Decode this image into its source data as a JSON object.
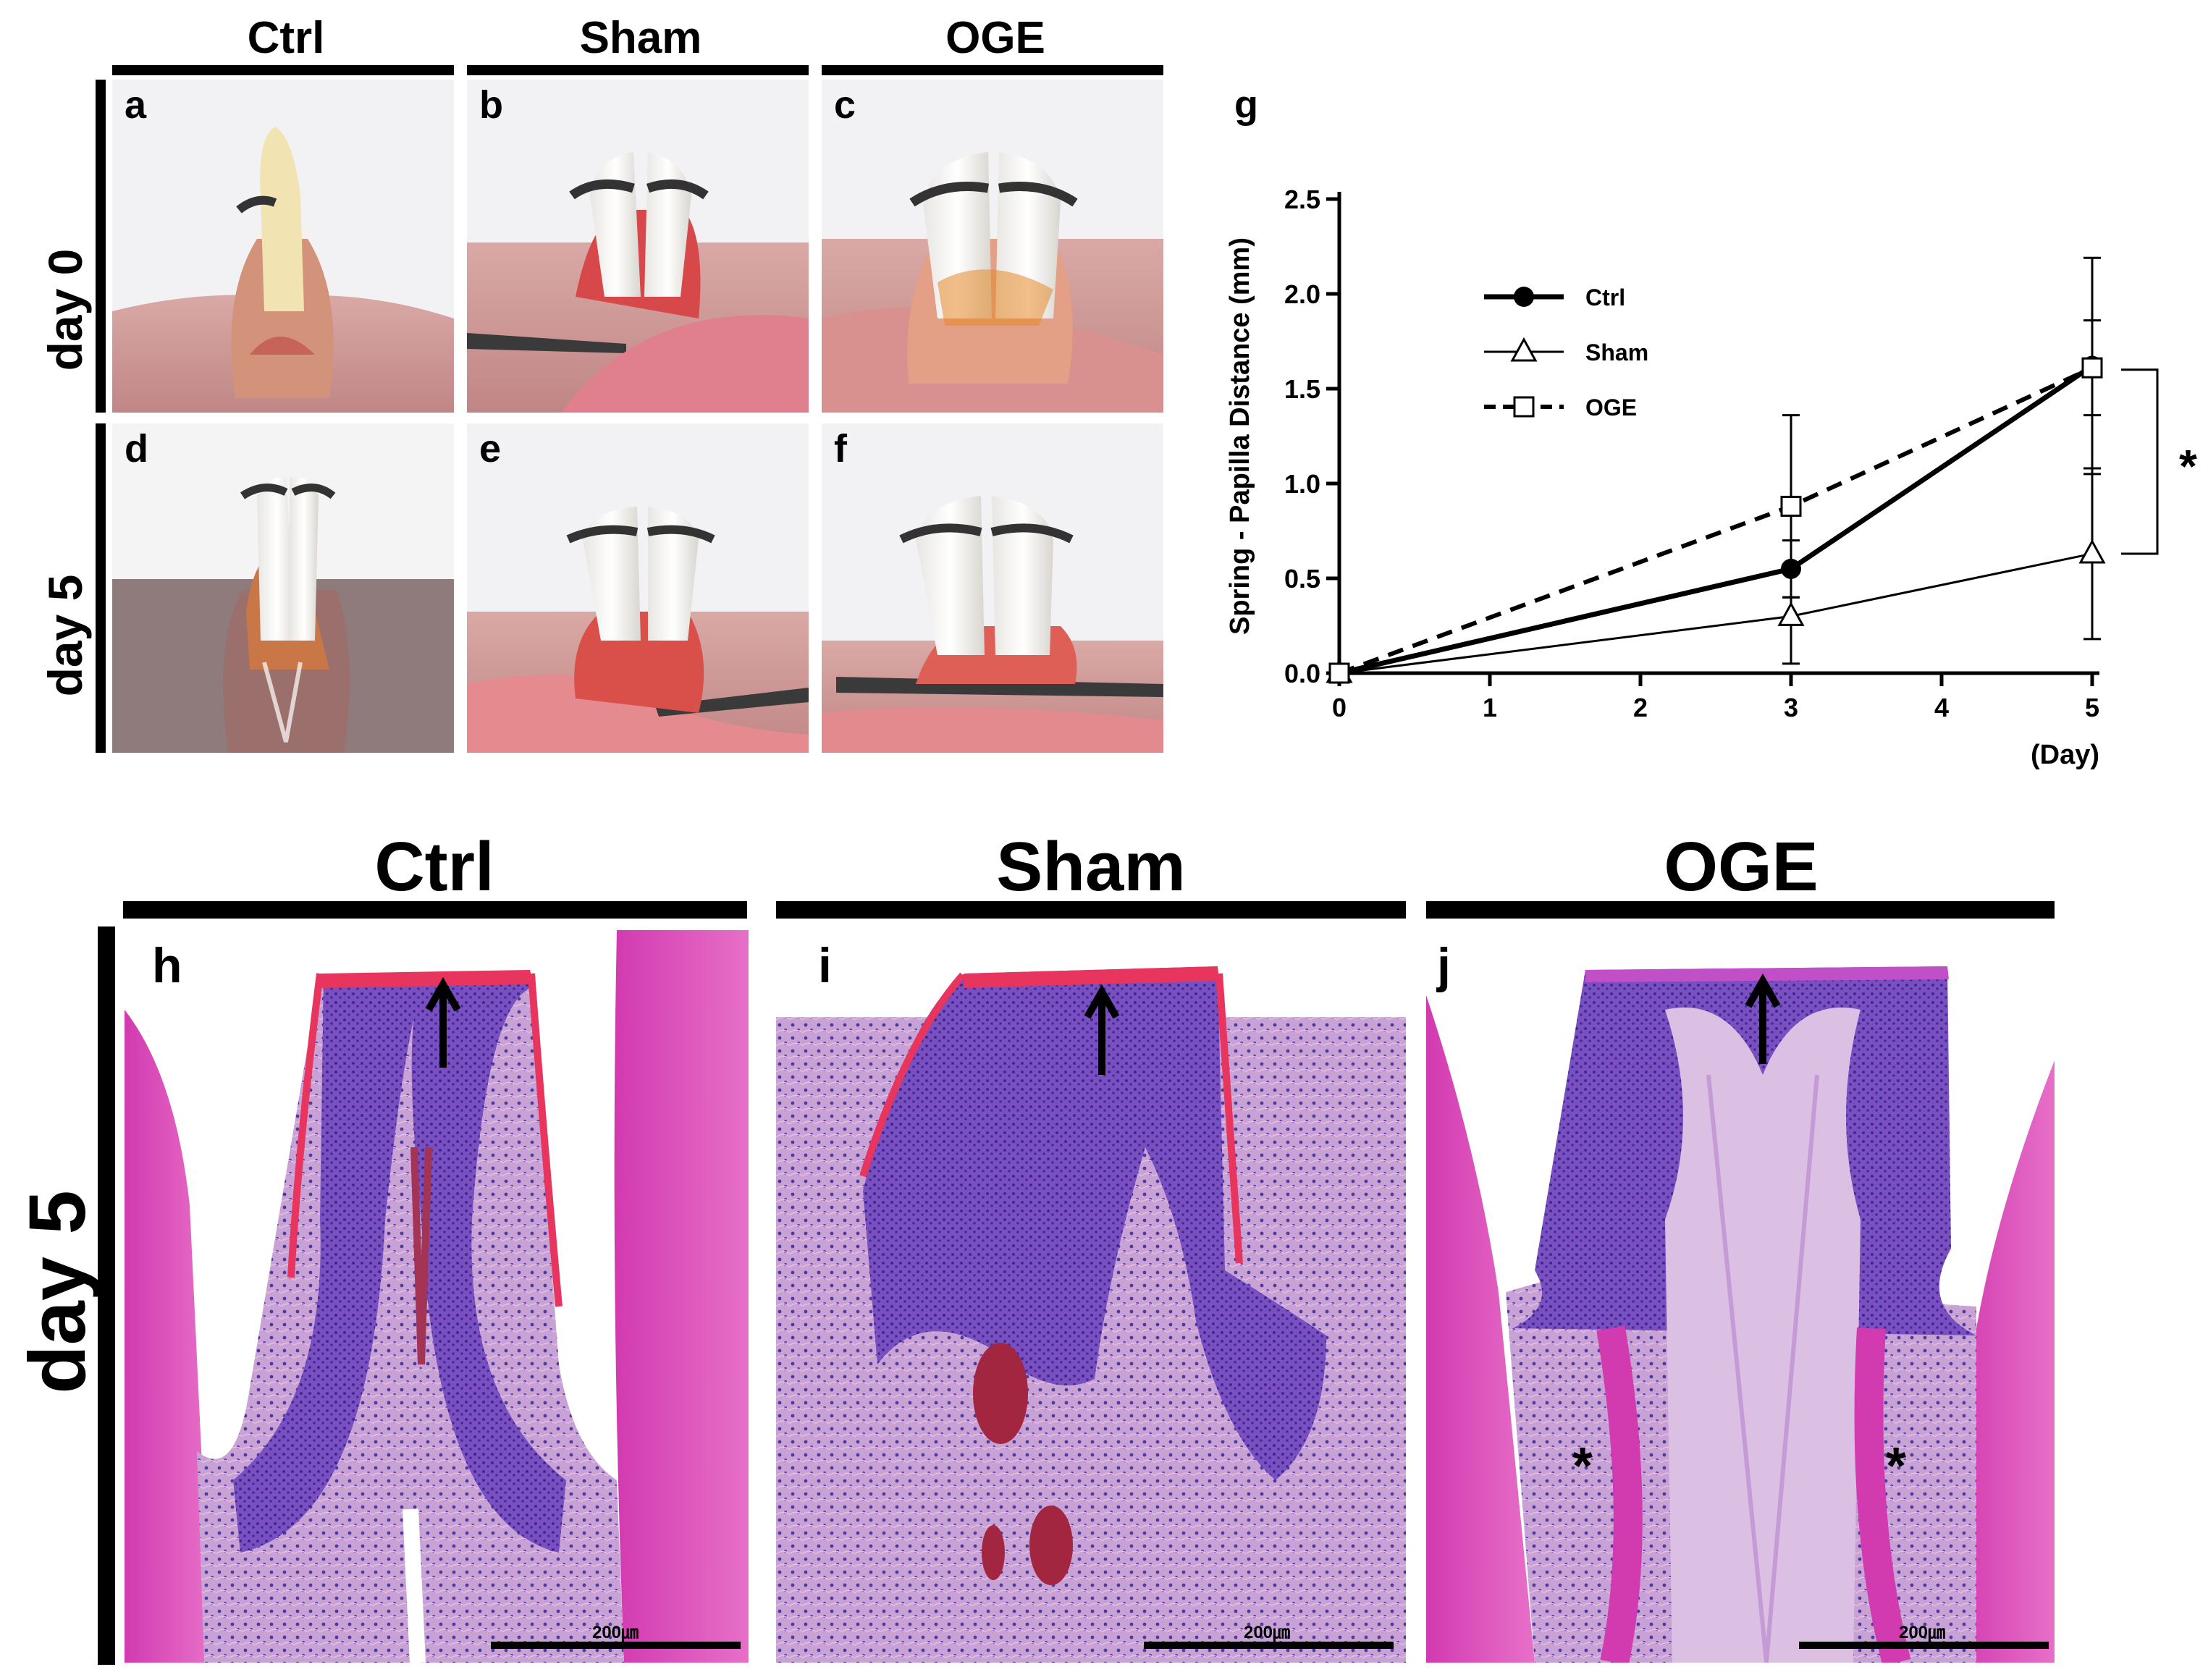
{
  "top_groups": [
    "Ctrl",
    "Sham",
    "OGE"
  ],
  "top_rows": [
    "day 0",
    "day 5"
  ],
  "panel_letters_photos": [
    "a",
    "b",
    "c",
    "d",
    "e",
    "f"
  ],
  "chart_letter": "g",
  "bottom_groups": [
    "Ctrl",
    "Sham",
    "OGE"
  ],
  "bottom_row": "day 5",
  "panel_letters_histo": [
    "h",
    "i",
    "j"
  ],
  "scale_label": "200㎛",
  "asterisk": "*",
  "chart_data": {
    "type": "line",
    "ylabel": "Spring - Papilla Distance (mm)",
    "xlabel": "(Day)",
    "xlim": [
      0,
      5
    ],
    "ylim": [
      0,
      2.5
    ],
    "xticks": [
      "0",
      "1",
      "2",
      "3",
      "4",
      "5"
    ],
    "yticks": [
      "0.0",
      "0.5",
      "1.0",
      "1.5",
      "2.0",
      "2.5"
    ],
    "x": [
      0,
      3,
      5
    ],
    "series": [
      {
        "name": "Ctrl",
        "values": [
          0,
          0.55,
          1.62
        ],
        "err": [
          0,
          0.15,
          0.57
        ],
        "style": "solid-thick",
        "marker": "filled-circle"
      },
      {
        "name": "Sham",
        "values": [
          0,
          0.3,
          0.63
        ],
        "err": [
          0,
          0.25,
          0.45
        ],
        "style": "solid-thin",
        "marker": "open-triangle"
      },
      {
        "name": "OGE",
        "values": [
          0,
          0.88,
          1.61
        ],
        "err": [
          0,
          0.48,
          0.25
        ],
        "style": "dashed",
        "marker": "open-square"
      }
    ],
    "significance": "*",
    "legend_position": "upper-left"
  }
}
